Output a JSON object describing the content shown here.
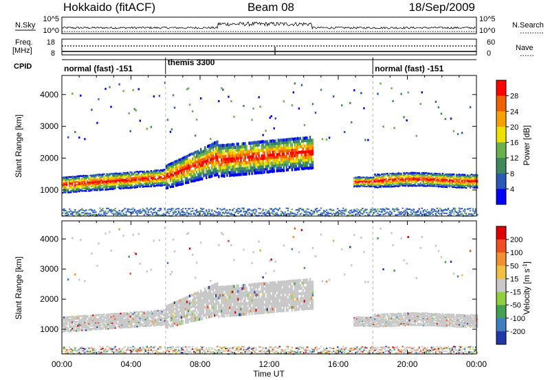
{
  "header": {
    "station": "Hokkaido (fitACF)",
    "beam": "Beam 08",
    "date": "18/Sep/2009"
  },
  "aux_panels": {
    "nsky": {
      "label": "N.Sky",
      "ticks": [
        "10^5",
        "10^0"
      ]
    },
    "nsearch": {
      "label": "N.Search",
      "ticks": [
        "10^5",
        "10^0"
      ]
    },
    "freq": {
      "label_line1": "Freq.",
      "label_line2": "[MHz]",
      "ticks": [
        "18",
        "8"
      ]
    },
    "nave": {
      "label": "Nave",
      "ticks": [
        "60",
        "0"
      ]
    },
    "cpid": {
      "label": "CPID",
      "segments": [
        {
          "name": "normal (fast) -151",
          "start_h": 0,
          "end_h": 6
        },
        {
          "name": "themis 3300",
          "start_h": 6,
          "end_h": 18
        },
        {
          "name": "normal (fast) -151",
          "start_h": 18,
          "end_h": 24
        }
      ]
    }
  },
  "chart_data": [
    {
      "type": "heatmap",
      "ylabel": "Slant Range [km]",
      "xlabel": "Time UT",
      "xlim": [
        0,
        24
      ],
      "ylim": [
        180,
        4600
      ],
      "x_ticks": [
        "00:00",
        "04:00",
        "08:00",
        "12:00",
        "16:00",
        "20:00",
        "00:00"
      ],
      "y_ticks": [
        1000,
        2000,
        3000,
        4000
      ],
      "colorbar": {
        "label": "Power [dB]",
        "ticks": [
          "4",
          "8",
          "12",
          "16",
          "20",
          "24",
          "28"
        ],
        "colors": [
          "#0000ff",
          "#2a58b8",
          "#3c8a5a",
          "#6ab04c",
          "#f0e000",
          "#f7a000",
          "#f06000",
          "#ff0000"
        ]
      }
    },
    {
      "type": "heatmap",
      "ylabel": "Slant Range [km]",
      "xlabel": "Time UT",
      "xlim": [
        0,
        24
      ],
      "ylim": [
        180,
        4600
      ],
      "x_ticks": [
        "00:00",
        "04:00",
        "08:00",
        "12:00",
        "16:00",
        "20:00",
        "00:00"
      ],
      "y_ticks": [
        1000,
        2000,
        3000,
        4000
      ],
      "colorbar": {
        "label": "Velocity [m s",
        "label_sup": "-1",
        "label_end": "]",
        "ticks": [
          "200",
          "100",
          "50",
          "15",
          "-15",
          "-50",
          "-100",
          "-200"
        ],
        "colors": [
          "#1f3aa8",
          "#3f7fc0",
          "#45a050",
          "#8fd040",
          "#c8c8c8",
          "#f0c040",
          "#f09030",
          "#f05020",
          "#e00000"
        ]
      }
    }
  ]
}
